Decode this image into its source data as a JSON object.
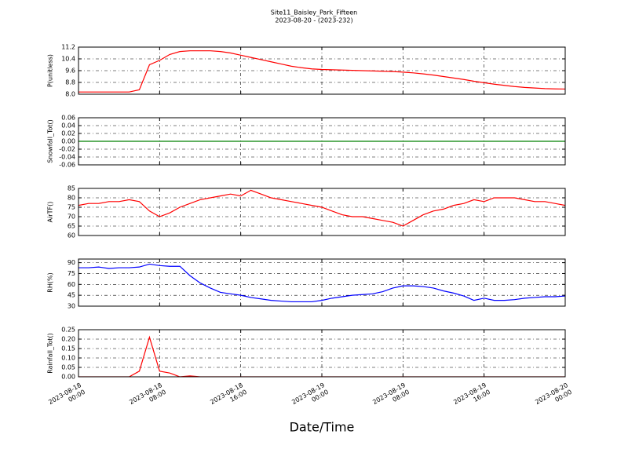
{
  "title": "Site11_Baisley_Park_Fifteen",
  "subtitle": "2023-08-20 - (2023-232)",
  "x_label": "Date/Time",
  "xlim": [
    "2023-08-18 00:00",
    "2023-08-20 00:00"
  ],
  "xticks": [
    {
      "value": "2023-08-18 00:00",
      "label": "2023-08-18\n00:00"
    },
    {
      "value": "2023-08-18 08:00",
      "label": "2023-08-18\n08:00"
    },
    {
      "value": "2023-08-18 16:00",
      "label": "2023-08-18\n16:00"
    },
    {
      "value": "2023-08-19 00:00",
      "label": "2023-08-19\n00:00"
    },
    {
      "value": "2023-08-19 08:00",
      "label": "2023-08-19\n08:00"
    },
    {
      "value": "2023-08-19 16:00",
      "label": "2023-08-19\n16:00"
    },
    {
      "value": "2023-08-20 00:00",
      "label": "2023-08-20\n00:00"
    }
  ],
  "grid": true,
  "chart_data": [
    {
      "type": "line",
      "y_label": "P(unitless)",
      "ylim": [
        8.0,
        11.2
      ],
      "yticks": [
        {
          "value": 8.0,
          "label": "8.0"
        },
        8.8,
        9.6,
        10.4,
        11.2
      ],
      "x": [
        "2023-08-18 00:00",
        "2023-08-18 01:00",
        "2023-08-18 02:00",
        "2023-08-18 03:00",
        "2023-08-18 04:00",
        "2023-08-18 05:00",
        "2023-08-18 06:00",
        "2023-08-18 07:00",
        "2023-08-18 08:00",
        "2023-08-18 09:00",
        "2023-08-18 10:00",
        "2023-08-18 11:00",
        "2023-08-18 12:00",
        "2023-08-18 13:00",
        "2023-08-18 14:00",
        "2023-08-18 15:00",
        "2023-08-18 16:00",
        "2023-08-18 17:00",
        "2023-08-18 18:00",
        "2023-08-18 19:00",
        "2023-08-18 20:00",
        "2023-08-18 21:00",
        "2023-08-18 22:00",
        "2023-08-18 23:00",
        "2023-08-19 00:00",
        "2023-08-19 01:00",
        "2023-08-19 02:00",
        "2023-08-19 03:00",
        "2023-08-19 04:00",
        "2023-08-19 05:00",
        "2023-08-19 06:00",
        "2023-08-19 07:00",
        "2023-08-19 08:00",
        "2023-08-19 09:00",
        "2023-08-19 10:00",
        "2023-08-19 11:00",
        "2023-08-19 12:00",
        "2023-08-19 13:00",
        "2023-08-19 14:00",
        "2023-08-19 15:00",
        "2023-08-19 16:00",
        "2023-08-19 17:00",
        "2023-08-19 18:00",
        "2023-08-19 19:00",
        "2023-08-19 20:00",
        "2023-08-19 21:00",
        "2023-08-19 22:00",
        "2023-08-19 23:00",
        "2023-08-20 00:00"
      ],
      "series": [
        {
          "name": "P",
          "color": "#ff0000",
          "values": [
            8.15,
            8.15,
            8.15,
            8.15,
            8.15,
            8.15,
            8.3,
            10.0,
            10.3,
            10.7,
            10.9,
            10.95,
            10.95,
            10.95,
            10.9,
            10.8,
            10.65,
            10.5,
            10.35,
            10.2,
            10.05,
            9.9,
            9.8,
            9.72,
            9.68,
            9.66,
            9.64,
            9.62,
            9.6,
            9.58,
            9.56,
            9.54,
            9.5,
            9.45,
            9.38,
            9.3,
            9.2,
            9.1,
            9.0,
            8.88,
            8.78,
            8.68,
            8.6,
            8.52,
            8.46,
            8.42,
            8.38,
            8.36,
            8.35
          ]
        }
      ]
    },
    {
      "type": "line",
      "y_label": "Snowfall_Tot()",
      "ylim": [
        -0.06,
        0.06
      ],
      "yticks": [
        -0.06,
        -0.04,
        -0.02,
        {
          "value": 0,
          "label": "0.00"
        },
        0.02,
        0.04,
        0.06
      ],
      "x": [
        "2023-08-18 00:00",
        "2023-08-18 01:00",
        "2023-08-18 02:00",
        "2023-08-18 03:00",
        "2023-08-18 04:00",
        "2023-08-18 05:00",
        "2023-08-18 06:00",
        "2023-08-18 07:00",
        "2023-08-18 08:00",
        "2023-08-18 09:00",
        "2023-08-18 10:00",
        "2023-08-18 11:00",
        "2023-08-18 12:00",
        "2023-08-18 13:00",
        "2023-08-18 14:00",
        "2023-08-18 15:00",
        "2023-08-18 16:00",
        "2023-08-18 17:00",
        "2023-08-18 18:00",
        "2023-08-18 19:00",
        "2023-08-18 20:00",
        "2023-08-18 21:00",
        "2023-08-18 22:00",
        "2023-08-18 23:00",
        "2023-08-19 00:00",
        "2023-08-19 01:00",
        "2023-08-19 02:00",
        "2023-08-19 03:00",
        "2023-08-19 04:00",
        "2023-08-19 05:00",
        "2023-08-19 06:00",
        "2023-08-19 07:00",
        "2023-08-19 08:00",
        "2023-08-19 09:00",
        "2023-08-19 10:00",
        "2023-08-19 11:00",
        "2023-08-19 12:00",
        "2023-08-19 13:00",
        "2023-08-19 14:00",
        "2023-08-19 15:00",
        "2023-08-19 16:00",
        "2023-08-19 17:00",
        "2023-08-19 18:00",
        "2023-08-19 19:00",
        "2023-08-19 20:00",
        "2023-08-19 21:00",
        "2023-08-19 22:00",
        "2023-08-19 23:00",
        "2023-08-20 00:00"
      ],
      "series": [
        {
          "name": "Snowfall_Tot",
          "color": "#008000",
          "values": [
            0,
            0,
            0,
            0,
            0,
            0,
            0,
            0,
            0,
            0,
            0,
            0,
            0,
            0,
            0,
            0,
            0,
            0,
            0,
            0,
            0,
            0,
            0,
            0,
            0,
            0,
            0,
            0,
            0,
            0,
            0,
            0,
            0,
            0,
            0,
            0,
            0,
            0,
            0,
            0,
            0,
            0,
            0,
            0,
            0,
            0,
            0,
            0,
            0
          ]
        }
      ]
    },
    {
      "type": "line",
      "y_label": "AirTF()",
      "ylim": [
        60,
        85
      ],
      "yticks": [
        60,
        65,
        70,
        75,
        80,
        85
      ],
      "x": [
        "2023-08-18 00:00",
        "2023-08-18 01:00",
        "2023-08-18 02:00",
        "2023-08-18 03:00",
        "2023-08-18 04:00",
        "2023-08-18 05:00",
        "2023-08-18 06:00",
        "2023-08-18 07:00",
        "2023-08-18 08:00",
        "2023-08-18 09:00",
        "2023-08-18 10:00",
        "2023-08-18 11:00",
        "2023-08-18 12:00",
        "2023-08-18 13:00",
        "2023-08-18 14:00",
        "2023-08-18 15:00",
        "2023-08-18 16:00",
        "2023-08-18 17:00",
        "2023-08-18 18:00",
        "2023-08-18 19:00",
        "2023-08-18 20:00",
        "2023-08-18 21:00",
        "2023-08-18 22:00",
        "2023-08-18 23:00",
        "2023-08-19 00:00",
        "2023-08-19 01:00",
        "2023-08-19 02:00",
        "2023-08-19 03:00",
        "2023-08-19 04:00",
        "2023-08-19 05:00",
        "2023-08-19 06:00",
        "2023-08-19 07:00",
        "2023-08-19 08:00",
        "2023-08-19 09:00",
        "2023-08-19 10:00",
        "2023-08-19 11:00",
        "2023-08-19 12:00",
        "2023-08-19 13:00",
        "2023-08-19 14:00",
        "2023-08-19 15:00",
        "2023-08-19 16:00",
        "2023-08-19 17:00",
        "2023-08-19 18:00",
        "2023-08-19 19:00",
        "2023-08-19 20:00",
        "2023-08-19 21:00",
        "2023-08-19 22:00",
        "2023-08-19 23:00",
        "2023-08-20 00:00"
      ],
      "series": [
        {
          "name": "AirTF",
          "color": "#ff0000",
          "values": [
            76,
            77,
            77,
            78,
            78,
            79,
            78,
            73,
            70,
            72,
            75,
            77,
            79,
            80,
            81,
            82,
            81,
            84,
            82,
            80,
            79,
            78,
            77,
            76,
            75,
            73,
            71,
            70,
            70,
            69,
            68,
            67,
            65,
            68,
            71,
            73,
            74,
            76,
            77,
            79,
            78,
            80,
            80,
            80,
            79,
            78,
            78,
            77,
            76
          ]
        }
      ]
    },
    {
      "type": "line",
      "y_label": "RH(%)",
      "ylim": [
        30,
        95
      ],
      "yticks": [
        30,
        45,
        60,
        75,
        90
      ],
      "x": [
        "2023-08-18 00:00",
        "2023-08-18 01:00",
        "2023-08-18 02:00",
        "2023-08-18 03:00",
        "2023-08-18 04:00",
        "2023-08-18 05:00",
        "2023-08-18 06:00",
        "2023-08-18 07:00",
        "2023-08-18 08:00",
        "2023-08-18 09:00",
        "2023-08-18 10:00",
        "2023-08-18 11:00",
        "2023-08-18 12:00",
        "2023-08-18 13:00",
        "2023-08-18 14:00",
        "2023-08-18 15:00",
        "2023-08-18 16:00",
        "2023-08-18 17:00",
        "2023-08-18 18:00",
        "2023-08-18 19:00",
        "2023-08-18 20:00",
        "2023-08-18 21:00",
        "2023-08-18 22:00",
        "2023-08-18 23:00",
        "2023-08-19 00:00",
        "2023-08-19 01:00",
        "2023-08-19 02:00",
        "2023-08-19 03:00",
        "2023-08-19 04:00",
        "2023-08-19 05:00",
        "2023-08-19 06:00",
        "2023-08-19 07:00",
        "2023-08-19 08:00",
        "2023-08-19 09:00",
        "2023-08-19 10:00",
        "2023-08-19 11:00",
        "2023-08-19 12:00",
        "2023-08-19 13:00",
        "2023-08-19 14:00",
        "2023-08-19 15:00",
        "2023-08-19 16:00",
        "2023-08-19 17:00",
        "2023-08-19 18:00",
        "2023-08-19 19:00",
        "2023-08-19 20:00",
        "2023-08-19 21:00",
        "2023-08-19 22:00",
        "2023-08-19 23:00",
        "2023-08-20 00:00"
      ],
      "series": [
        {
          "name": "RH",
          "color": "#0000ff",
          "values": [
            83,
            83,
            84,
            82,
            83,
            83,
            84,
            88,
            86,
            85,
            85,
            72,
            62,
            55,
            49,
            47,
            45,
            42,
            40,
            38,
            37,
            36,
            36,
            36,
            38,
            41,
            43,
            45,
            46,
            47,
            50,
            55,
            58,
            58,
            57,
            55,
            51,
            48,
            44,
            38,
            41,
            38,
            38,
            39,
            41,
            42,
            43,
            43,
            44
          ]
        }
      ]
    },
    {
      "type": "line",
      "y_label": "Rainfall_Tot()",
      "ylim": [
        0,
        0.25
      ],
      "yticks": [
        {
          "value": 0,
          "label": "0.00"
        },
        {
          "value": 0.05,
          "label": "0.05"
        },
        {
          "value": 0.1,
          "label": "0.10"
        },
        0.15,
        {
          "value": 0.2,
          "label": "0.20"
        },
        0.25
      ],
      "x": [
        "2023-08-18 00:00",
        "2023-08-18 01:00",
        "2023-08-18 02:00",
        "2023-08-18 03:00",
        "2023-08-18 04:00",
        "2023-08-18 05:00",
        "2023-08-18 06:00",
        "2023-08-18 07:00",
        "2023-08-18 08:00",
        "2023-08-18 09:00",
        "2023-08-18 10:00",
        "2023-08-18 11:00",
        "2023-08-18 12:00",
        "2023-08-18 13:00",
        "2023-08-18 14:00",
        "2023-08-18 15:00",
        "2023-08-18 16:00",
        "2023-08-18 17:00",
        "2023-08-18 18:00",
        "2023-08-18 19:00",
        "2023-08-18 20:00",
        "2023-08-18 21:00",
        "2023-08-18 22:00",
        "2023-08-18 23:00",
        "2023-08-19 00:00",
        "2023-08-19 01:00",
        "2023-08-19 02:00",
        "2023-08-19 03:00",
        "2023-08-19 04:00",
        "2023-08-19 05:00",
        "2023-08-19 06:00",
        "2023-08-19 07:00",
        "2023-08-19 08:00",
        "2023-08-19 09:00",
        "2023-08-19 10:00",
        "2023-08-19 11:00",
        "2023-08-19 12:00",
        "2023-08-19 13:00",
        "2023-08-19 14:00",
        "2023-08-19 15:00",
        "2023-08-19 16:00",
        "2023-08-19 17:00",
        "2023-08-19 18:00",
        "2023-08-19 19:00",
        "2023-08-19 20:00",
        "2023-08-19 21:00",
        "2023-08-19 22:00",
        "2023-08-19 23:00",
        "2023-08-20 00:00"
      ],
      "series": [
        {
          "name": "Rainfall_Tot",
          "color": "#ff0000",
          "values": [
            0,
            0,
            0,
            0,
            0,
            0,
            0.03,
            0.21,
            0.03,
            0.02,
            0,
            0.005,
            0,
            0,
            0,
            0,
            0,
            0,
            0,
            0,
            0,
            0,
            0,
            0,
            0,
            0,
            0,
            0,
            0,
            0,
            0,
            0,
            0,
            0,
            0,
            0,
            0,
            0,
            0,
            0,
            0,
            0,
            0,
            0,
            0,
            0,
            0,
            0,
            0
          ]
        }
      ]
    }
  ]
}
